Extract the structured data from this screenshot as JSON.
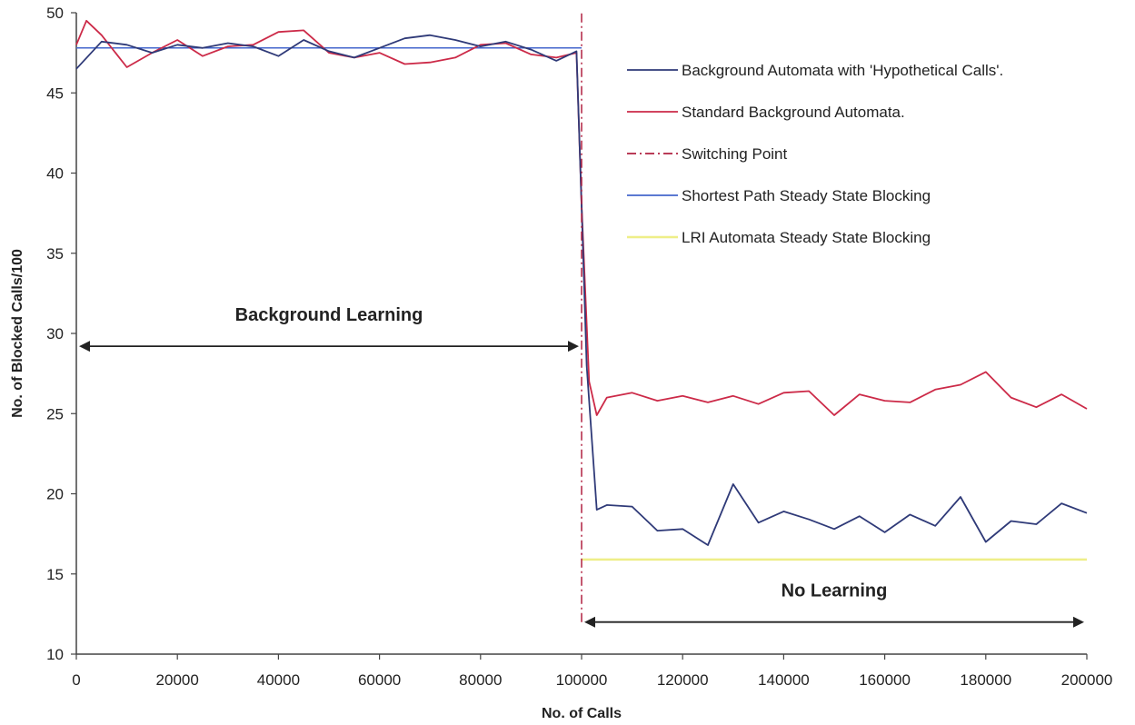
{
  "chart_data": {
    "type": "line",
    "xlabel": "No. of Calls",
    "ylabel": "No. of Blocked Calls/100",
    "xlim": [
      0,
      200000
    ],
    "ylim": [
      10,
      50
    ],
    "xticks": [
      "0",
      "20000",
      "40000",
      "60000",
      "80000",
      "100000",
      "120000",
      "140000",
      "160000",
      "180000",
      "200000"
    ],
    "yticks": [
      "10",
      "15",
      "20",
      "25",
      "30",
      "35",
      "40",
      "45",
      "50"
    ],
    "grid": false,
    "legend_position": "top-right",
    "colors": {
      "hypothetical": "#2f3a78",
      "standard": "#cc2a48",
      "switching": "#b02040",
      "shortest_path": "#4466cc",
      "lri": "#eeee88",
      "arrow": "#222222"
    },
    "series": [
      {
        "name": "Background Automata with 'Hypothetical Calls'.",
        "key": "hypothetical",
        "x": [
          0,
          5000,
          10000,
          15000,
          20000,
          25000,
          30000,
          35000,
          40000,
          45000,
          50000,
          55000,
          60000,
          65000,
          70000,
          75000,
          80000,
          85000,
          90000,
          95000,
          99000,
          100000,
          101000,
          103000,
          105000,
          110000,
          115000,
          120000,
          125000,
          130000,
          135000,
          140000,
          145000,
          150000,
          155000,
          160000,
          165000,
          170000,
          175000,
          180000,
          185000,
          190000,
          195000,
          200000
        ],
        "values": [
          46.5,
          48.2,
          48.0,
          47.5,
          48.0,
          47.8,
          48.1,
          47.9,
          47.3,
          48.3,
          47.6,
          47.2,
          47.8,
          48.4,
          48.6,
          48.3,
          47.9,
          48.2,
          47.7,
          47.0,
          47.6,
          38.0,
          28.0,
          19.0,
          19.3,
          19.2,
          17.7,
          17.8,
          16.8,
          20.6,
          18.2,
          18.9,
          18.4,
          17.8,
          18.6,
          17.6,
          18.7,
          18.0,
          19.8,
          17.0,
          18.3,
          18.1,
          19.4,
          18.8
        ]
      },
      {
        "name": "Standard Background Automata.",
        "key": "standard",
        "x": [
          0,
          2000,
          5000,
          10000,
          15000,
          20000,
          25000,
          30000,
          35000,
          40000,
          45000,
          50000,
          55000,
          60000,
          65000,
          70000,
          75000,
          80000,
          85000,
          90000,
          95000,
          99000,
          100000,
          101500,
          103000,
          105000,
          110000,
          115000,
          120000,
          125000,
          130000,
          135000,
          140000,
          145000,
          150000,
          155000,
          160000,
          165000,
          170000,
          175000,
          180000,
          185000,
          190000,
          195000,
          200000
        ],
        "values": [
          48.0,
          49.5,
          48.6,
          46.6,
          47.5,
          48.3,
          47.3,
          47.9,
          48.0,
          48.8,
          48.9,
          47.5,
          47.2,
          47.5,
          46.8,
          46.9,
          47.2,
          48.0,
          48.1,
          47.4,
          47.2,
          47.5,
          38.0,
          27.0,
          24.9,
          26.0,
          26.3,
          25.8,
          26.1,
          25.7,
          26.1,
          25.6,
          26.3,
          26.4,
          24.9,
          26.2,
          25.8,
          25.7,
          26.5,
          26.8,
          27.6,
          26.0,
          25.4,
          26.2,
          25.3
        ]
      },
      {
        "name": "Switching Point",
        "key": "switching",
        "x": [
          100000,
          100000
        ],
        "values": [
          12,
          50
        ]
      },
      {
        "name": "Shortest Path Steady State Blocking",
        "key": "shortest_path",
        "x": [
          0,
          100000
        ],
        "values": [
          47.8,
          47.8
        ]
      },
      {
        "name": "LRI Automata Steady State Blocking",
        "key": "lri",
        "x": [
          100000,
          200000
        ],
        "values": [
          15.9,
          15.9
        ]
      }
    ],
    "annotations": [
      {
        "text": "Background Learning",
        "x_from": 0,
        "x_to": 100000,
        "arrow_y": 29.2,
        "label_y": 30.8
      },
      {
        "text": "No Learning",
        "x_from": 100000,
        "x_to": 200000,
        "arrow_y": 12.0,
        "label_y": 13.6
      }
    ]
  }
}
